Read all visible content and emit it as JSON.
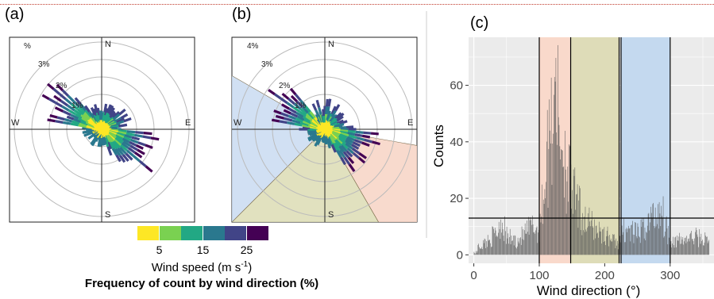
{
  "chart_data": [
    {
      "panel": "(a)",
      "type": "windrose",
      "directions": [
        "N",
        "E",
        "S",
        "W"
      ],
      "rings": [
        "1%",
        "2%",
        "3%",
        "%"
      ],
      "dominant_axis_deg": [
        120,
        300
      ]
    },
    {
      "panel": "(b)",
      "type": "windrose",
      "directions": [
        "N",
        "E",
        "S",
        "W"
      ],
      "rings": [
        "1%",
        "2%",
        "3%",
        "4%"
      ],
      "sectors": [
        {
          "from": 100,
          "to": 150,
          "color": "#f7d3c4"
        },
        {
          "from": 150,
          "to": 225,
          "color": "#dcdcb4"
        },
        {
          "from": 225,
          "to": 300,
          "color": "#c9dbf1"
        }
      ]
    },
    {
      "panel": "(c)",
      "type": "bar",
      "xlabel": "Wind direction (°)",
      "ylabel": "Counts",
      "xlim": [
        -8,
        367
      ],
      "ylim": [
        -3,
        77
      ],
      "xticks": [
        "0",
        "100",
        "200",
        "300"
      ],
      "yticks": [
        "0",
        "20",
        "40",
        "60"
      ],
      "hline": 13,
      "vlines": [
        100,
        148,
        222,
        225,
        300
      ],
      "bands": [
        {
          "from": 100,
          "to": 148,
          "color": "#f9d9cb"
        },
        {
          "from": 148,
          "to": 222,
          "color": "#dedcb8"
        },
        {
          "from": 225,
          "to": 300,
          "color": "#c4d9ef"
        }
      ],
      "profile": [
        [
          0,
          2
        ],
        [
          20,
          6
        ],
        [
          35,
          10
        ],
        [
          42,
          16
        ],
        [
          50,
          8
        ],
        [
          65,
          6
        ],
        [
          80,
          10
        ],
        [
          90,
          13
        ],
        [
          98,
          10
        ],
        [
          103,
          18
        ],
        [
          110,
          38
        ],
        [
          118,
          58
        ],
        [
          125,
          66
        ],
        [
          132,
          55
        ],
        [
          140,
          42
        ],
        [
          148,
          30
        ],
        [
          160,
          20
        ],
        [
          175,
          14
        ],
        [
          185,
          12
        ],
        [
          195,
          10
        ],
        [
          205,
          8
        ],
        [
          215,
          6
        ],
        [
          222,
          5
        ],
        [
          230,
          12
        ],
        [
          240,
          10
        ],
        [
          250,
          9
        ],
        [
          260,
          12
        ],
        [
          270,
          16
        ],
        [
          278,
          18
        ],
        [
          285,
          22
        ],
        [
          292,
          14
        ],
        [
          300,
          7
        ],
        [
          310,
          6
        ],
        [
          325,
          7
        ],
        [
          340,
          8
        ],
        [
          350,
          7
        ],
        [
          360,
          6
        ]
      ]
    }
  ],
  "colorbar": {
    "colors": [
      "#fde725",
      "#7ad151",
      "#22a884",
      "#2a788e",
      "#414487",
      "#440154"
    ],
    "ticks": [
      "5",
      "15",
      "25"
    ],
    "title": "Wind speed (m s",
    "title_sup": "-1",
    "title_end": ")",
    "subtitle": "Frequency of count by wind direction (%)"
  }
}
